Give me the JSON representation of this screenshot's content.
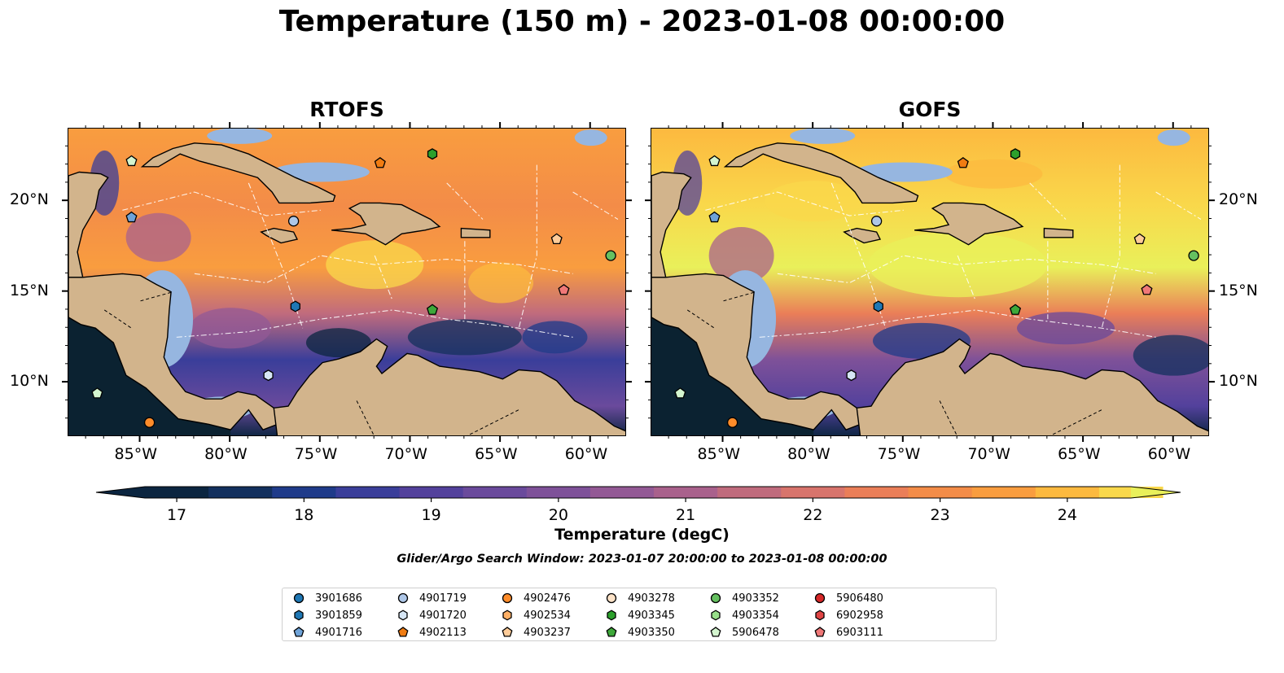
{
  "title": "Temperature (150 m) - 2023-01-08 00:00:00",
  "panels": [
    {
      "title": "RTOFS"
    },
    {
      "title": "GOFS"
    }
  ],
  "lon_ticks": [
    "85°W",
    "80°W",
    "75°W",
    "70°W",
    "65°W",
    "60°W"
  ],
  "lat_ticks": [
    "20°N",
    "15°N",
    "10°N"
  ],
  "extent": {
    "lon_min": -89,
    "lon_max": -58,
    "lat_min": 7,
    "lat_max": 24
  },
  "colorbar": {
    "label": "Temperature (degC)",
    "ticks": [
      "17",
      "18",
      "19",
      "20",
      "21",
      "22",
      "23",
      "24"
    ],
    "min": 16.75,
    "max": 24.5,
    "step": 0.5,
    "extend": "both",
    "colors": [
      "#0b2540",
      "#13305e",
      "#1f3b8a",
      "#3a3e9a",
      "#53419c",
      "#6a4a9c",
      "#7e5199",
      "#935995",
      "#a9618c",
      "#c06b7d",
      "#d8746c",
      "#ea7e58",
      "#f38c48",
      "#f99d3f",
      "#fcb93f",
      "#f9d84b",
      "#e9f05a"
    ]
  },
  "subtitle": "Glider/Argo Search Window: 2023-01-07 20:00:00 to 2023-01-08 00:00:00",
  "legend": [
    {
      "id": "3901686",
      "marker": "circle",
      "color": "#1f77b4"
    },
    {
      "id": "3901859",
      "marker": "hexagon",
      "color": "#1f77b4"
    },
    {
      "id": "4901716",
      "marker": "pentagon",
      "color": "#6fa3d8"
    },
    {
      "id": "4901719",
      "marker": "circle",
      "color": "#aec7e8"
    },
    {
      "id": "4901720",
      "marker": "hexagon",
      "color": "#d6e6f5"
    },
    {
      "id": "4902113",
      "marker": "pentagon",
      "color": "#f07c12"
    },
    {
      "id": "4902476",
      "marker": "circle",
      "color": "#ff8c2a"
    },
    {
      "id": "4902534",
      "marker": "hexagon",
      "color": "#ffb066"
    },
    {
      "id": "4903237",
      "marker": "pentagon",
      "color": "#ffcc99"
    },
    {
      "id": "4903278",
      "marker": "circle",
      "color": "#fde3c8"
    },
    {
      "id": "4903345",
      "marker": "hexagon",
      "color": "#2ca02c"
    },
    {
      "id": "4903350",
      "marker": "pentagon",
      "color": "#3ea83a"
    },
    {
      "id": "4903352",
      "marker": "circle",
      "color": "#65c060"
    },
    {
      "id": "4903354",
      "marker": "hexagon",
      "color": "#98df8a"
    },
    {
      "id": "5906478",
      "marker": "pentagon",
      "color": "#d4f5cf"
    },
    {
      "id": "5906480",
      "marker": "circle",
      "color": "#d62728"
    },
    {
      "id": "6902958",
      "marker": "hexagon",
      "color": "#e04545"
    },
    {
      "id": "6903111",
      "marker": "pentagon",
      "color": "#f07878"
    }
  ],
  "floats": [
    {
      "id": "5906478",
      "lon": -85.5,
      "lat": 22.2
    },
    {
      "id": "4901716",
      "lon": -85.5,
      "lat": 19.1
    },
    {
      "id": "4901719",
      "lon": -76.5,
      "lat": 18.9
    },
    {
      "id": "4902113",
      "lon": -71.7,
      "lat": 22.1
    },
    {
      "id": "4903345",
      "lon": -68.8,
      "lat": 22.6
    },
    {
      "id": "4903237",
      "lon": -61.9,
      "lat": 17.9
    },
    {
      "id": "4903352",
      "lon": -58.9,
      "lat": 17.0
    },
    {
      "id": "6903111",
      "lon": -61.5,
      "lat": 15.1
    },
    {
      "id": "3901859",
      "lon": -76.4,
      "lat": 14.2
    },
    {
      "id": "4903350",
      "lon": -68.8,
      "lat": 14.0
    },
    {
      "id": "4901720",
      "lon": -77.9,
      "lat": 10.4
    },
    {
      "id": "5906478",
      "lon": -87.4,
      "lat": 9.4
    },
    {
      "id": "4902476",
      "lon": -84.5,
      "lat": 7.8
    }
  ]
}
